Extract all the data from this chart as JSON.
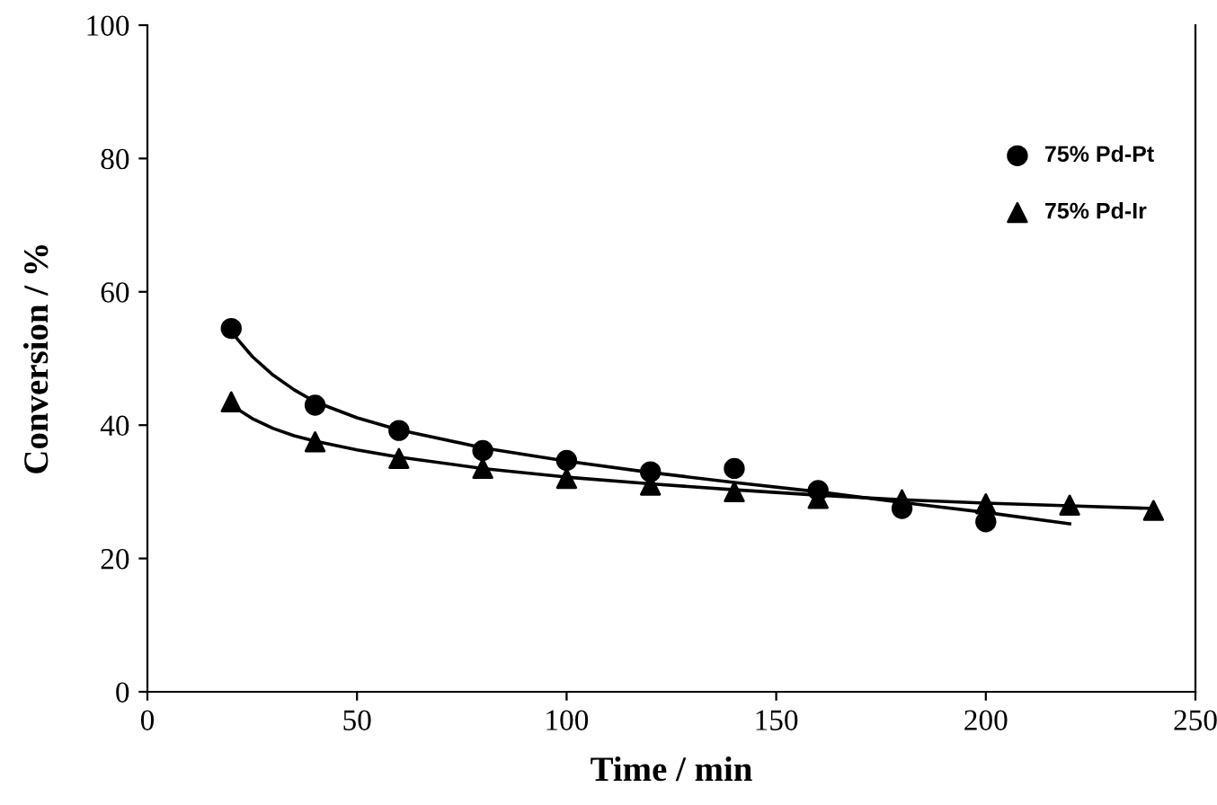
{
  "chart_data": {
    "type": "scatter",
    "xlabel": "Time / min",
    "ylabel": "Conversion / %",
    "xlim": [
      0,
      250
    ],
    "ylim": [
      0,
      100
    ],
    "xticks": [
      0,
      50,
      100,
      150,
      200,
      250
    ],
    "yticks": [
      0,
      20,
      40,
      60,
      80,
      100
    ],
    "grid": false,
    "legend": "top right",
    "series": [
      {
        "name": "75% Pd-Pt",
        "marker": "circle",
        "color": "#000000",
        "x": [
          20,
          40,
          60,
          80,
          100,
          120,
          140,
          160,
          180,
          200
        ],
        "values": [
          54.5,
          43,
          39.2,
          36.2,
          34.7,
          33,
          33.5,
          30.2,
          27.5,
          25.5
        ]
      },
      {
        "name": "75% Pd-Ir",
        "marker": "triangle",
        "color": "#000000",
        "x": [
          20,
          40,
          60,
          80,
          100,
          120,
          140,
          160,
          180,
          200,
          220,
          240
        ],
        "values": [
          43.5,
          37.5,
          35,
          33.5,
          32,
          31,
          30,
          29,
          28.8,
          28.2,
          28,
          27.2
        ]
      },
      {
        "type": "line",
        "marker": "none",
        "line_style": "solid",
        "color": "#000000",
        "x": [
          20,
          25,
          30,
          35,
          40,
          50,
          60,
          80,
          100,
          120,
          140,
          160,
          180,
          200,
          220
        ],
        "values": [
          54,
          50.3,
          47.5,
          45.3,
          43.5,
          41.1,
          39.3,
          36.6,
          34.6,
          32.9,
          31.4,
          30,
          28.4,
          26.9,
          25.2
        ]
      },
      {
        "type": "line",
        "marker": "none",
        "line_style": "solid",
        "color": "#000000",
        "x": [
          20,
          25,
          30,
          35,
          40,
          50,
          60,
          80,
          100,
          120,
          140,
          160,
          180,
          200,
          220,
          240
        ],
        "values": [
          43,
          41,
          39.5,
          38.4,
          37.6,
          36.3,
          35.2,
          33.5,
          32.2,
          31.2,
          30.3,
          29.5,
          28.8,
          28.3,
          27.9,
          27.5
        ]
      }
    ]
  }
}
